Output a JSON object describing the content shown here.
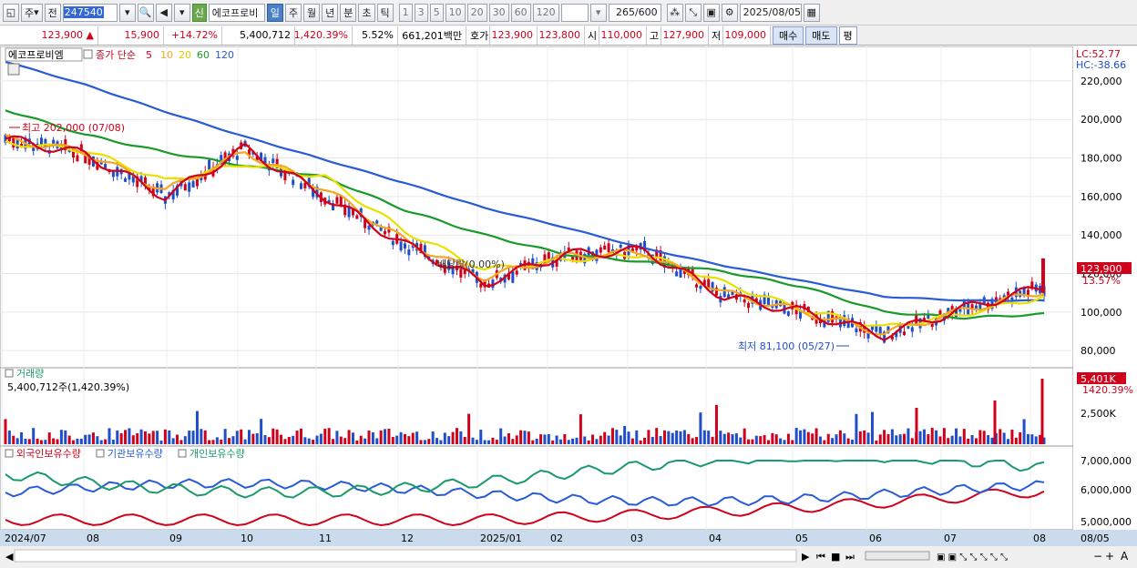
{
  "toolbar": {
    "period_label": "주",
    "prev_label": "전",
    "code": "247540",
    "new_badge": "신",
    "stock_name": "에코프로비",
    "interval_tabs": [
      "일",
      "주",
      "월",
      "년",
      "분",
      "초",
      "틱"
    ],
    "active_interval": "일",
    "minute_options": [
      "1",
      "3",
      "5",
      "10",
      "20",
      "30",
      "60",
      "120"
    ],
    "count_value": "265",
    "count_total": "/600",
    "date_value": "2025/08/05"
  },
  "quote": {
    "price": "123,900",
    "change_arrow": "▲",
    "change": "15,900",
    "change_pct": "+14.72%",
    "volume": "5,400,712",
    "volume_pct": "1,420.39%",
    "turnover_pct": "5.52%",
    "amount": "661,201백만",
    "hoga_label": "호가",
    "ask": "123,900",
    "bid": "123,800",
    "open_label": "시",
    "open": "110,000",
    "high_label": "고",
    "high": "127,900",
    "low_label": "저",
    "low": "109,000",
    "buy_label": "매수",
    "sell_label": "매도",
    "flat_label": "평"
  },
  "legend": {
    "name": "에코프로비엠",
    "close_label": "종가 단순",
    "ma": [
      {
        "label": "5",
        "color": "#d0021b"
      },
      {
        "label": "10",
        "color": "#f5a623"
      },
      {
        "label": "20",
        "color": "#e8e000"
      },
      {
        "label": "60",
        "color": "#1a9a2a"
      },
      {
        "label": "120",
        "color": "#2a5bd7"
      }
    ]
  },
  "annotations": {
    "high_text": "최고 202,000 (07/08)",
    "low_text": "최저 81,100 (05/27)",
    "ex_div_text": "배당락(0.00%)",
    "lc": "LC:52.77",
    "hc": "HC:-38.66",
    "last_price": "123,900",
    "last_pct": "13.57%"
  },
  "volume_panel": {
    "title": "거래량",
    "value_text": "5,400,712주(1,420.39%)",
    "last_badge": "5,401K",
    "last_pct": "1420.39%",
    "axis_label": "2,500K"
  },
  "holdings_panel": {
    "series": [
      {
        "name": "외국인보유수량",
        "color": "#d0021b"
      },
      {
        "name": "기관보유수량",
        "color": "#2a5bd7"
      },
      {
        "name": "개인보유수량",
        "color": "#1a9a6a"
      }
    ],
    "axis_labels": [
      "7,000,000",
      "6,000,000",
      "5,000,000"
    ]
  },
  "x_axis": {
    "labels": [
      "2024/07",
      "08",
      "09",
      "10",
      "11",
      "12",
      "2025/01",
      "02",
      "03",
      "04",
      "05",
      "06",
      "07",
      "08",
      "08/05"
    ]
  },
  "chart_data": {
    "type": "line",
    "title": "",
    "y_ticks": [
      80000,
      100000,
      120000,
      140000,
      160000,
      180000,
      200000,
      220000
    ],
    "ylim": [
      73000,
      236000
    ],
    "x": [
      "2024/07",
      "08",
      "09",
      "10",
      "11",
      "12",
      "2025/01",
      "02",
      "03",
      "04",
      "05",
      "06",
      "07",
      "08"
    ],
    "series": [
      {
        "name": "5",
        "values": [
          190000,
          182000,
          160000,
          185000,
          160000,
          135000,
          115000,
          130000,
          132000,
          108000,
          100000,
          88000,
          102000,
          113000
        ]
      },
      {
        "name": "10",
        "values": [
          190000,
          183000,
          163000,
          183000,
          164000,
          137000,
          118000,
          129000,
          131000,
          110000,
          100000,
          89000,
          101000,
          111000
        ]
      },
      {
        "name": "20",
        "values": [
          188000,
          184000,
          168000,
          177000,
          170000,
          142000,
          122000,
          127000,
          130000,
          115000,
          101000,
          92000,
          99000,
          108000
        ]
      },
      {
        "name": "60",
        "values": [
          205000,
          192000,
          183000,
          176000,
          170000,
          153000,
          140000,
          130000,
          126000,
          121000,
          113000,
          100000,
          97000,
          99000
        ]
      },
      {
        "name": "120",
        "values": [
          230000,
          218000,
          204000,
          191000,
          179000,
          167000,
          154000,
          144000,
          133000,
          124000,
          116000,
          108000,
          106000,
          106000
        ]
      }
    ],
    "grid": true,
    "legend": "top-left"
  }
}
